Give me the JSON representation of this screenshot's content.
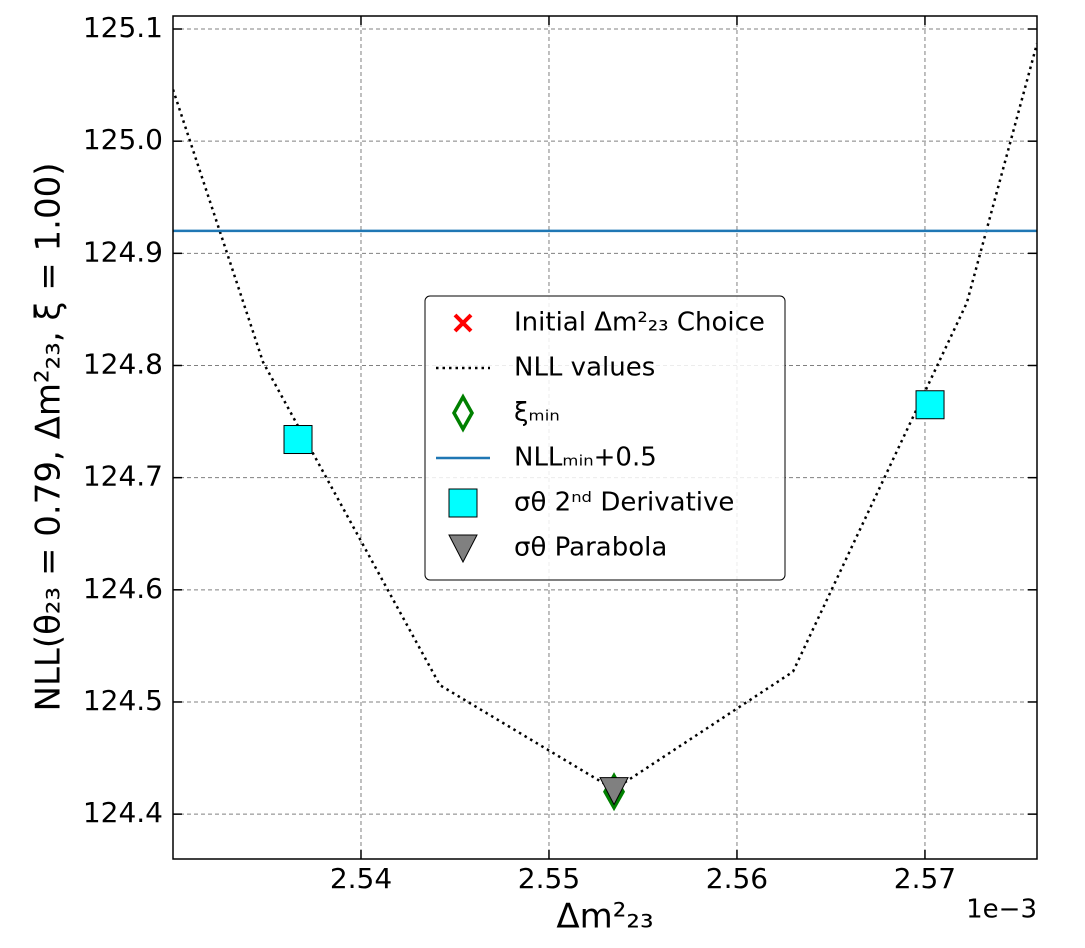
{
  "chart_data": {
    "type": "line",
    "xlabel": "Δm²₂₃",
    "ylabel": "NLL(θ₂₃ = 0.79, Δm²₂₃, ξ = 1.00)",
    "x_offset_label": "1e−3",
    "xlim": [
      2.53,
      2.57596
    ],
    "ylim": [
      124.36,
      125.1116
    ],
    "xticks": [
      2.54,
      2.55,
      2.56,
      2.57
    ],
    "yticks": [
      {
        "value": 124.4,
        "label": "124.4"
      },
      {
        "value": 124.5,
        "label": "124.5"
      },
      {
        "value": 124.6,
        "label": "124.6"
      },
      {
        "value": 124.7,
        "label": "124.7"
      },
      {
        "value": 124.8,
        "label": "124.8"
      },
      {
        "value": 124.9,
        "label": "124.9"
      },
      {
        "value": 125.0,
        "label": "125.0"
      },
      {
        "value": 125.1,
        "label": "125.1"
      }
    ],
    "grid": true,
    "legend": "center",
    "series": [
      {
        "name": "Initial Δm²₂₃ Choice",
        "color": "#ff0000",
        "marker": "x",
        "x": [],
        "y": []
      },
      {
        "name": "NLL values",
        "color": "#000000",
        "marker": "dotted",
        "x": [
          2.53,
          2.53479,
          2.5442,
          2.55346,
          2.56298,
          2.57223,
          2.57596
        ],
        "y": [
          125.046,
          124.803,
          124.515,
          124.422,
          124.527,
          124.856,
          125.087
        ]
      },
      {
        "name": "ξₘᵢₙ",
        "color": "#008000",
        "marker": "diamond",
        "x": [
          2.55346
        ],
        "y": [
          124.42
        ]
      },
      {
        "name": "NLLₘᵢₙ+0.5",
        "color": "#1f77b4",
        "marker": "hline",
        "y": [
          124.92
        ]
      },
      {
        "name": "σθ 2ⁿᵈ Derivative",
        "color": "#00ffff",
        "marker": "square",
        "x": [
          2.53665,
          2.57027
        ],
        "y": [
          124.734,
          124.765
        ]
      },
      {
        "name": "σθ Parabola",
        "color": "#808080",
        "marker": "triangle",
        "x": [
          2.55346
        ],
        "y": [
          124.421
        ]
      }
    ]
  }
}
